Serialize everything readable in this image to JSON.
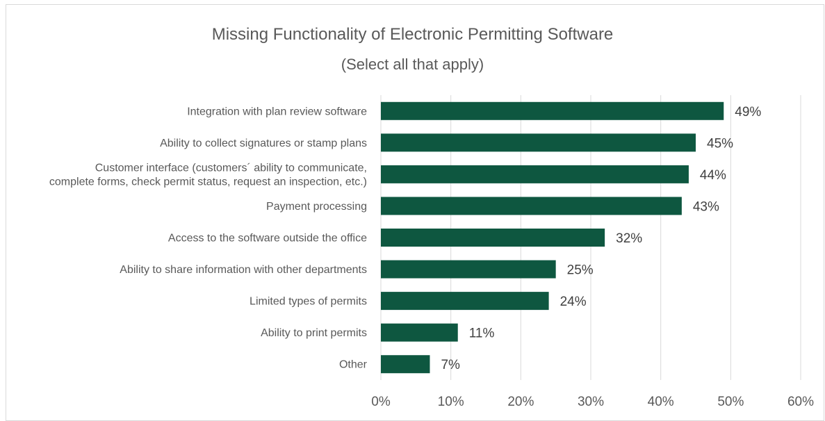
{
  "chart_data": {
    "type": "bar",
    "orientation": "horizontal",
    "title": "Missing Functionality of Electronic Permitting Software",
    "subtitle": "(Select all that apply)",
    "categories": [
      [
        "Integration with plan review software"
      ],
      [
        "Ability to collect signatures or stamp plans"
      ],
      [
        "Customer interface (customers´ ability to communicate,",
        "complete forms, check permit status, request an inspection, etc.)"
      ],
      [
        "Payment processing"
      ],
      [
        "Access to the software outside the office"
      ],
      [
        "Ability to share information with other departments"
      ],
      [
        "Limited types of permits"
      ],
      [
        "Ability to print permits"
      ],
      [
        "Other"
      ]
    ],
    "values": [
      49,
      45,
      44,
      43,
      32,
      25,
      24,
      11,
      7
    ],
    "data_labels": [
      "49%",
      "45%",
      "44%",
      "43%",
      "32%",
      "25%",
      "24%",
      "11%",
      "7%"
    ],
    "xlim": [
      0,
      60
    ],
    "x_ticks": [
      0,
      10,
      20,
      30,
      40,
      50,
      60
    ],
    "x_tick_labels": [
      "0%",
      "10%",
      "20%",
      "30%",
      "40%",
      "50%",
      "60%"
    ],
    "grid": true,
    "bar_color": "#0e5740",
    "grid_color": "#d9d9d9"
  }
}
